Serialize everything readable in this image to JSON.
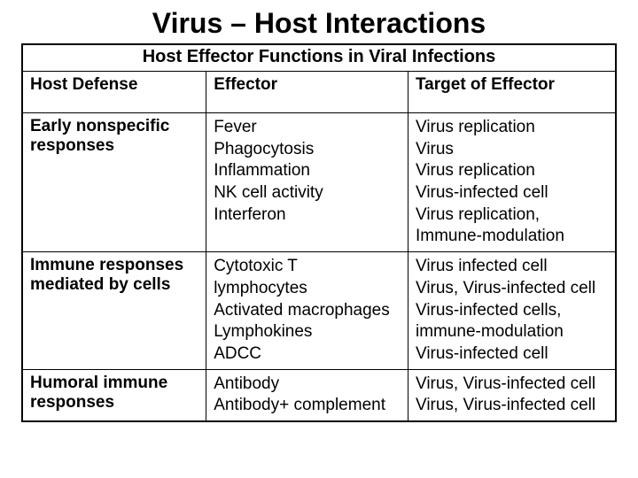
{
  "page_title": "Virus – Host Interactions",
  "table": {
    "title": "Host Effector Functions in Viral Infections",
    "columns": [
      "Host Defense",
      "Effector",
      "Target of Effector"
    ],
    "rows": [
      {
        "defense": "Early nonspecific responses",
        "effector": [
          "Fever",
          "Phagocytosis",
          "Inflammation",
          "NK cell activity",
          "Interferon"
        ],
        "target": [
          "Virus replication",
          "Virus",
          "Virus replication",
          "Virus-infected cell",
          "Virus replication,",
          "Immune-modulation"
        ]
      },
      {
        "defense": "Immune responses mediated by cells",
        "effector": [
          "Cytotoxic T",
          "lymphocytes",
          "Activated macrophages",
          "Lymphokines",
          "ADCC"
        ],
        "target": [
          "Virus infected cell",
          "Virus, Virus-infected cell",
          "Virus-infected cells,",
          "immune-modulation",
          "Virus-infected cell"
        ]
      },
      {
        "defense": "Humoral immune responses",
        "effector": [
          "Antibody",
          "Antibody+ complement"
        ],
        "target": [
          "Virus, Virus-infected cell",
          "Virus, Virus-infected cell"
        ]
      }
    ],
    "styling": {
      "title_fontsize": 32,
      "table_title_fontsize": 20,
      "header_fontsize": 19,
      "body_fontsize": 19,
      "border_color": "#000000",
      "background_color": "#ffffff",
      "text_color": "#000000",
      "col_widths_pct": [
        31,
        34,
        35
      ]
    }
  }
}
